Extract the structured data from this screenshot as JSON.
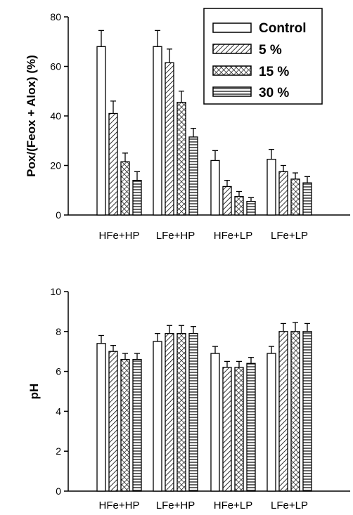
{
  "chart_data": [
    {
      "type": "bar",
      "ylabel": "Pox/(Feox + Alox) (%)",
      "ylim": [
        0,
        80
      ],
      "yticks": [
        0,
        20,
        40,
        60,
        80
      ],
      "categories": [
        "HFe+HP",
        "LFe+HP",
        "HFe+LP",
        "LFe+LP"
      ],
      "series": [
        {
          "name": "Control",
          "values": [
            68,
            68,
            22,
            22.5
          ],
          "errors": [
            6.5,
            6.5,
            4,
            4
          ]
        },
        {
          "name": "5 %",
          "values": [
            41,
            61.5,
            11.5,
            17.5
          ],
          "errors": [
            5,
            5.5,
            2.5,
            2.5
          ]
        },
        {
          "name": "15 %",
          "values": [
            21.5,
            45.5,
            7.5,
            14.5
          ],
          "errors": [
            3.5,
            4.5,
            2,
            2.5
          ]
        },
        {
          "name": "30 %",
          "values": [
            14,
            31.5,
            5.5,
            13
          ],
          "errors": [
            3.5,
            3.5,
            1.5,
            2.5
          ]
        }
      ],
      "legend_position": "top-right",
      "grid": false
    },
    {
      "type": "bar",
      "ylabel": "pH",
      "ylim": [
        0,
        10
      ],
      "yticks": [
        0,
        2,
        4,
        6,
        8,
        10
      ],
      "categories": [
        "HFe+HP",
        "LFe+HP",
        "HFe+LP",
        "LFe+LP"
      ],
      "series": [
        {
          "name": "Control",
          "values": [
            7.4,
            7.5,
            6.9,
            6.9
          ],
          "errors": [
            0.4,
            0.4,
            0.35,
            0.35
          ]
        },
        {
          "name": "5 %",
          "values": [
            7.0,
            7.9,
            6.2,
            8.0
          ],
          "errors": [
            0.3,
            0.4,
            0.3,
            0.4
          ]
        },
        {
          "name": "15 %",
          "values": [
            6.6,
            7.9,
            6.2,
            8.0
          ],
          "errors": [
            0.3,
            0.4,
            0.3,
            0.45
          ]
        },
        {
          "name": "30 %",
          "values": [
            6.6,
            7.9,
            6.4,
            8.0
          ],
          "errors": [
            0.3,
            0.35,
            0.3,
            0.4
          ]
        }
      ],
      "legend_position": "none",
      "grid": false
    }
  ],
  "legend": {
    "items": [
      "Control",
      "5 %",
      "15 %",
      "30 %"
    ]
  }
}
